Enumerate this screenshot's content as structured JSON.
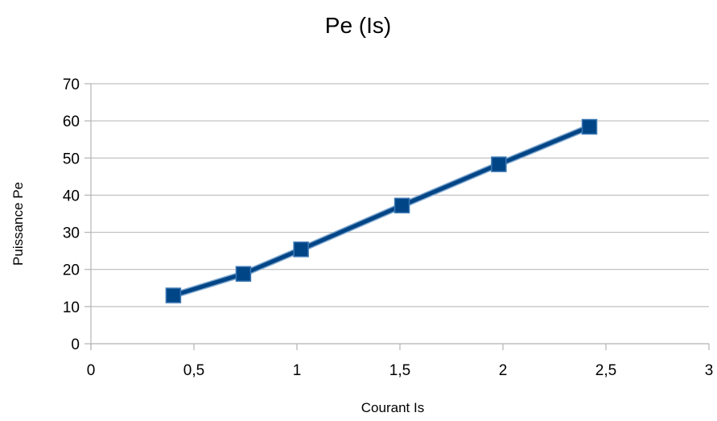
{
  "chart_data": {
    "type": "line",
    "title": "Pe (Is)",
    "xlabel": "Courant Is",
    "ylabel": "Puissance  Pe",
    "xlim": [
      0,
      3
    ],
    "ylim": [
      0,
      70
    ],
    "x_ticks": [
      "0",
      "0,5",
      "1",
      "1,5",
      "2",
      "2,5",
      "3"
    ],
    "x_tick_values": [
      0,
      0.5,
      1,
      1.5,
      2,
      2.5,
      3
    ],
    "y_ticks": [
      "0",
      "10",
      "20",
      "30",
      "40",
      "50",
      "60",
      "70"
    ],
    "y_tick_values": [
      0,
      10,
      20,
      30,
      40,
      50,
      60,
      70
    ],
    "grid": true,
    "legend": false,
    "series": [
      {
        "color": "#004586",
        "marker": "square",
        "x": [
          0.4,
          0.74,
          1.02,
          1.51,
          1.98,
          2.42
        ],
        "y": [
          13,
          18.8,
          25.4,
          37.2,
          48.3,
          58.4
        ]
      }
    ]
  }
}
